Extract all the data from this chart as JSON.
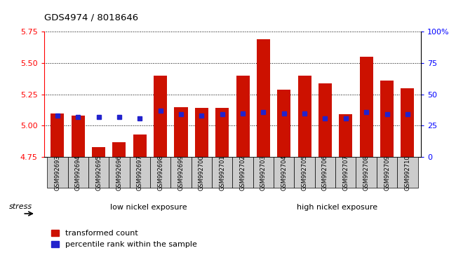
{
  "title": "GDS4974 / 8018646",
  "samples": [
    "GSM992693",
    "GSM992694",
    "GSM992695",
    "GSM992696",
    "GSM992697",
    "GSM992698",
    "GSM992699",
    "GSM992700",
    "GSM992701",
    "GSM992702",
    "GSM992703",
    "GSM992704",
    "GSM992705",
    "GSM992706",
    "GSM992707",
    "GSM992708",
    "GSM992709",
    "GSM992710"
  ],
  "red_values": [
    5.1,
    5.08,
    4.83,
    4.87,
    4.93,
    5.4,
    5.15,
    5.14,
    5.14,
    5.4,
    5.69,
    5.29,
    5.4,
    5.34,
    5.09,
    5.55,
    5.36,
    5.3
  ],
  "blue_values": [
    5.08,
    5.07,
    5.07,
    5.07,
    5.06,
    5.12,
    5.09,
    5.08,
    5.09,
    5.1,
    5.11,
    5.1,
    5.1,
    5.06,
    5.06,
    5.11,
    5.09,
    5.09
  ],
  "ymin": 4.75,
  "ymax": 5.75,
  "yticks": [
    4.75,
    5.0,
    5.25,
    5.5,
    5.75
  ],
  "right_yticks": [
    0,
    25,
    50,
    75,
    100
  ],
  "right_yticklabels": [
    "0",
    "25",
    "50",
    "75",
    "100%"
  ],
  "bar_color": "#cc1100",
  "blue_color": "#2222cc",
  "bg_color": "#ffffff",
  "group1_label": "low nickel exposure",
  "group2_label": "high nickel exposure",
  "group1_color": "#aaffaa",
  "group2_color": "#44dd44",
  "legend_red": "transformed count",
  "legend_blue": "percentile rank within the sample",
  "n_low": 10,
  "n_high": 8
}
